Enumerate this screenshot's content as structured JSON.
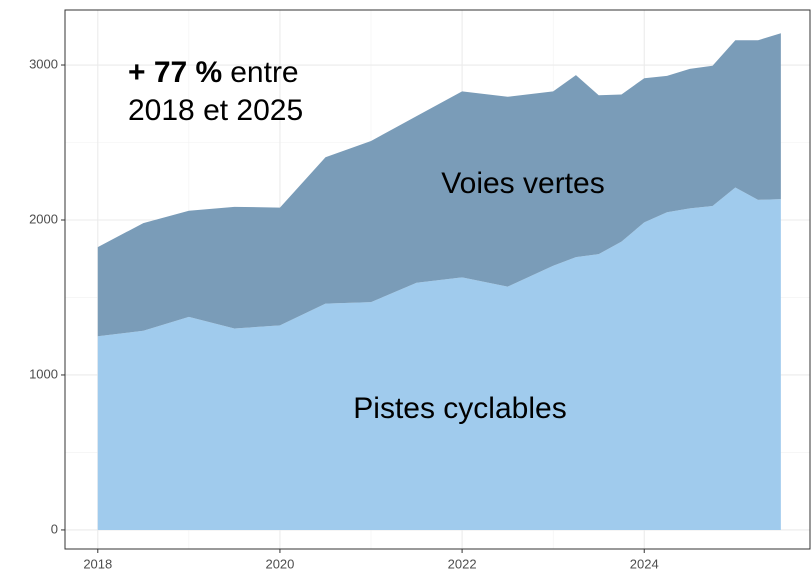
{
  "chart_data": {
    "type": "stacked_area",
    "x": [
      2018,
      2018.5,
      2019,
      2019.5,
      2020,
      2020.5,
      2021,
      2021.5,
      2022,
      2022.5,
      2023,
      2023.25,
      2023.5,
      2023.75,
      2024,
      2024.25,
      2024.5,
      2024.75,
      2025,
      2025.25,
      2025.5
    ],
    "series": [
      {
        "name": "Pistes cyclables",
        "color": "#a0cbed",
        "values": [
          1250,
          1285,
          1375,
          1300,
          1320,
          1460,
          1470,
          1595,
          1630,
          1570,
          1705,
          1760,
          1780,
          1860,
          1985,
          2050,
          2075,
          2090,
          2210,
          2130,
          2135
        ]
      },
      {
        "name": "Voies vertes",
        "color": "#7a9cb8",
        "values": [
          575,
          695,
          685,
          785,
          760,
          945,
          1040,
          1075,
          1200,
          1225,
          1125,
          1175,
          1025,
          950,
          930,
          880,
          900,
          905,
          950,
          1030,
          1070
        ]
      }
    ],
    "xlim": [
      2017.64,
      2025.82
    ],
    "xticks": [
      2018,
      2020,
      2022,
      2024
    ],
    "ylim": [
      -123,
      3355
    ],
    "yticks": [
      0,
      1000,
      2000,
      3000
    ],
    "grid": true,
    "annotation": {
      "highlight": "+ 77 %",
      "rest": "entre",
      "line2": "2018 et 2025"
    }
  }
}
